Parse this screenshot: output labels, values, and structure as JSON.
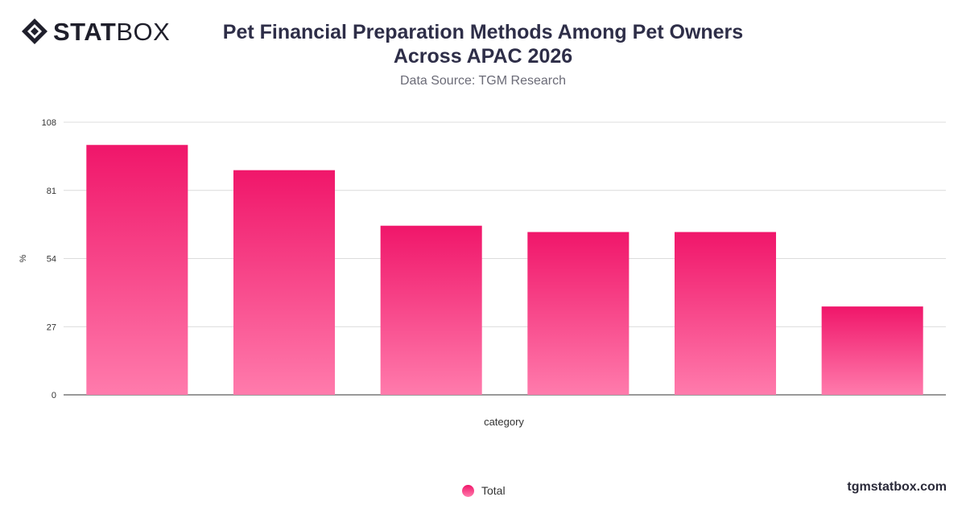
{
  "brand": {
    "logo_bold": "STAT",
    "logo_light": "BOX",
    "website": "tgmstatbox.com"
  },
  "header": {
    "title_line1": "Pet Financial Preparation Methods Among Pet Owners",
    "title_line2": "Across APAC 2026",
    "subtitle": "Data Source: TGM Research"
  },
  "colors": {
    "bar_top": "#f0166a",
    "bar_bottom": "#ff7bac",
    "grid": "#dcdcdc",
    "axis_text": "#333333"
  },
  "chart_data": {
    "type": "bar",
    "categories": [
      "",
      "",
      "",
      "",
      "",
      ""
    ],
    "series": [
      {
        "name": "Total",
        "values": [
          99,
          89,
          67,
          64.5,
          64.5,
          35
        ]
      }
    ],
    "xlabel": "category",
    "ylabel": "%",
    "ylim": [
      0,
      108
    ],
    "yticks": [
      0,
      27,
      54,
      81,
      108
    ],
    "grid": true,
    "legend": "bottom-center"
  }
}
